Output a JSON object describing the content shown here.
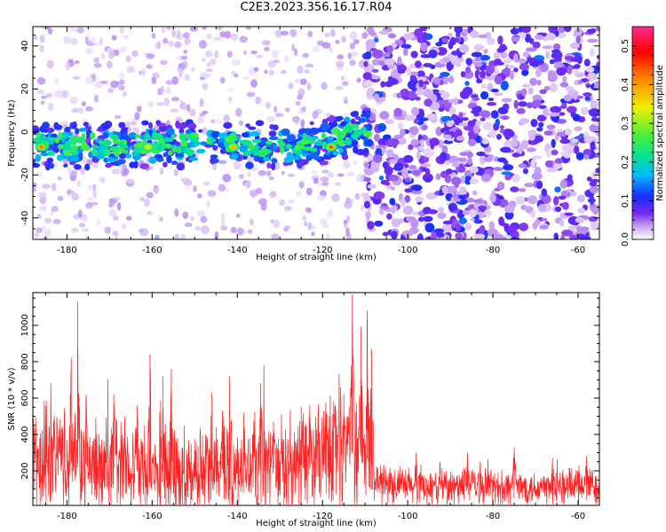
{
  "title": "C2E3.2023.356.16.17.R04",
  "chart_data": [
    {
      "type": "heatmap",
      "xlabel": "Height of straight line (km)",
      "ylabel": "Frequency (Hz)",
      "xlim": [
        -188,
        -55
      ],
      "ylim": [
        -50,
        49
      ],
      "xticks": [
        -180,
        -160,
        -140,
        -120,
        -100,
        -80,
        -60
      ],
      "yticks": [
        -40,
        -20,
        0,
        20,
        40
      ],
      "grid": false,
      "colorbar": {
        "label": "Normalized spectral amplitude",
        "range": [
          0.0,
          0.55
        ],
        "ticks": [
          0.0,
          0.1,
          0.2,
          0.3,
          0.4,
          0.5
        ],
        "colors": [
          "#ffffff",
          "#c8a4f4",
          "#7a2cf0",
          "#1a2cff",
          "#00b8ff",
          "#00e0a0",
          "#40f040",
          "#f0f000",
          "#ff8000",
          "#ff0000",
          "#ff2a90"
        ]
      },
      "band": {
        "center_freq_hz": -6,
        "half_width_hz": 8,
        "x_range_km": [
          -188,
          -109
        ],
        "peaks": [
          {
            "x": -186,
            "amplitude": 0.42
          },
          {
            "x": -161,
            "amplitude": 0.33
          },
          {
            "x": -141,
            "amplitude": 0.38
          },
          {
            "x": -118,
            "amplitude": 0.44
          }
        ]
      },
      "noise_transition_km": -108
    },
    {
      "type": "line",
      "xlabel": "Height of straight line (km)",
      "ylabel": "SNR (10 * v/v)",
      "xlim": [
        -188,
        -55
      ],
      "ylim": [
        10,
        1180
      ],
      "xticks": [
        -180,
        -160,
        -140,
        -120,
        -100,
        -80,
        -60
      ],
      "yticks": [
        200,
        400,
        600,
        800,
        1000
      ],
      "grid": false,
      "series": [
        {
          "color": "#ff2222",
          "baseline": [
            [
              -188,
              240
            ],
            [
              -180,
              250
            ],
            [
              -170,
              220
            ],
            [
              -160,
              200
            ],
            [
              -150,
              190
            ],
            [
              -140,
              220
            ],
            [
              -130,
              210
            ],
            [
              -120,
              250
            ],
            [
              -113,
              300
            ],
            [
              -109,
              260
            ],
            [
              -107,
              130
            ],
            [
              -100,
              115
            ],
            [
              -90,
              110
            ],
            [
              -80,
              110
            ],
            [
              -70,
              110
            ],
            [
              -55,
              115
            ]
          ],
          "spikes": [
            [
              -179.0,
              820
            ],
            [
              -177.5,
              1130
            ],
            [
              -175.5,
              620
            ],
            [
              -169.0,
              620
            ],
            [
              -163.5,
              560
            ],
            [
              -160.5,
              840
            ],
            [
              -157.5,
              720
            ],
            [
              -155.5,
              760
            ],
            [
              -143.5,
              530
            ],
            [
              -134.5,
              680
            ],
            [
              -131.5,
              470
            ],
            [
              -125.0,
              550
            ],
            [
              -123.0,
              560
            ],
            [
              -117.0,
              560
            ],
            [
              -115.0,
              620
            ],
            [
              -113.0,
              1170
            ],
            [
              -111.0,
              990
            ],
            [
              -109.5,
              1080
            ],
            [
              -108.5,
              870
            ],
            [
              -98.0,
              300
            ],
            [
              -86.0,
              300
            ],
            [
              -75.0,
              330
            ],
            [
              -66.0,
              270
            ],
            [
              -58.0,
              280
            ]
          ]
        }
      ]
    }
  ]
}
